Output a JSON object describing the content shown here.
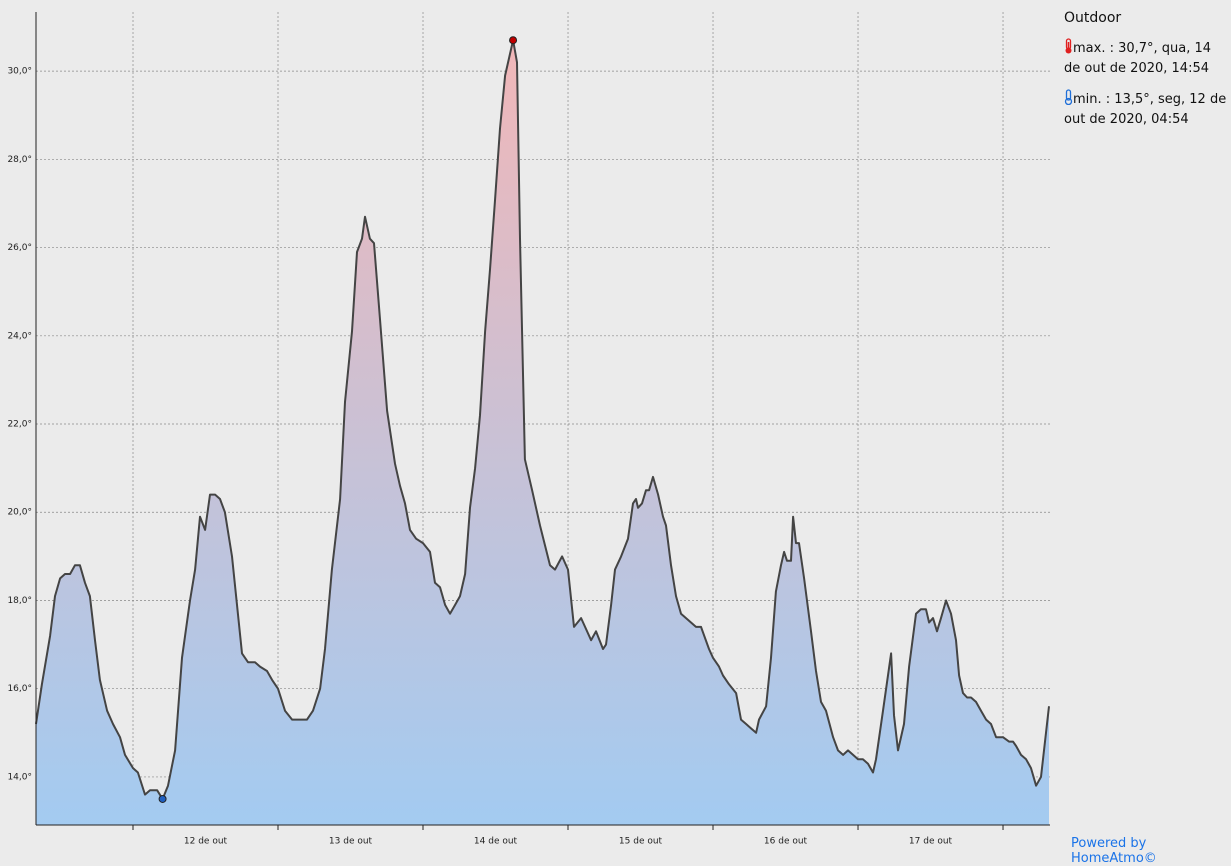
{
  "chart_data": {
    "type": "area",
    "title": "Outdoor",
    "annotations": [
      "max. : 30,7°, qua, 14 de out de 2020, 14:54",
      "min. : 13,5°, seg, 12 de out de 2020, 04:54"
    ],
    "x": [
      11.331,
      11.372,
      11.428,
      11.462,
      11.497,
      11.531,
      11.566,
      11.6,
      11.634,
      11.669,
      11.703,
      11.738,
      11.772,
      11.821,
      11.862,
      11.91,
      11.945,
      12,
      12.034,
      12.083,
      12.117,
      12.166,
      12.204,
      12.241,
      12.29,
      12.338,
      12.393,
      12.428,
      12.462,
      12.497,
      12.531,
      12.566,
      12.6,
      12.634,
      12.683,
      12.717,
      12.752,
      12.793,
      12.841,
      12.876,
      12.924,
      12.959,
      13,
      13.048,
      13.097,
      13.152,
      13.2,
      13.241,
      13.29,
      13.324,
      13.372,
      13.428,
      13.462,
      13.51,
      13.545,
      13.579,
      13.6,
      13.634,
      13.662,
      13.703,
      13.752,
      13.807,
      13.841,
      13.876,
      13.91,
      13.952,
      14,
      14.048,
      14.083,
      14.117,
      14.152,
      14.186,
      14.221,
      14.255,
      14.29,
      14.324,
      14.359,
      14.393,
      14.428,
      14.462,
      14.497,
      14.531,
      14.566,
      14.621,
      14.648,
      14.669,
      14.703,
      14.752,
      14.807,
      14.876,
      14.91,
      14.959,
      15,
      15.041,
      15.09,
      15.159,
      15.193,
      15.241,
      15.262,
      15.297,
      15.324,
      15.366,
      15.414,
      15.448,
      15.469,
      15.483,
      15.51,
      15.538,
      15.559,
      15.586,
      15.621,
      15.655,
      15.676,
      15.71,
      15.745,
      15.779,
      15.814,
      15.848,
      15.883,
      15.917,
      15.972,
      16,
      16.041,
      16.069,
      16.11,
      16.159,
      16.193,
      16.228,
      16.262,
      16.297,
      16.317,
      16.366,
      16.4,
      16.434,
      16.469,
      16.49,
      16.51,
      16.538,
      16.552,
      16.572,
      16.593,
      16.628,
      16.676,
      16.71,
      16.745,
      16.779,
      16.828,
      16.862,
      16.897,
      16.931,
      16.966,
      17,
      17.034,
      17.069,
      17.103,
      17.124,
      17.172,
      17.228,
      17.248,
      17.276,
      17.317,
      17.352,
      17.4,
      17.434,
      17.469,
      17.49,
      17.517,
      17.545,
      17.572,
      17.607,
      17.641,
      17.676,
      17.697,
      17.724,
      17.752,
      17.779,
      17.814,
      17.848,
      17.883,
      17.917,
      17.952,
      18,
      18.041,
      18.069,
      18.09,
      18.124,
      18.159,
      18.193,
      18.228,
      18.262,
      18.317
    ],
    "values": [
      15.2,
      16.1,
      17.2,
      18.1,
      18.5,
      18.6,
      18.6,
      18.8,
      18.8,
      18.4,
      18.1,
      17.1,
      16.2,
      15.5,
      15.2,
      14.9,
      14.5,
      14.2,
      14.1,
      13.6,
      13.7,
      13.7,
      13.5,
      13.8,
      14.6,
      16.7,
      18.0,
      18.7,
      19.9,
      19.6,
      20.4,
      20.4,
      20.3,
      20.0,
      19.0,
      17.9,
      16.8,
      16.6,
      16.6,
      16.5,
      16.4,
      16.2,
      16.0,
      15.5,
      15.3,
      15.3,
      15.3,
      15.5,
      16.0,
      16.9,
      18.7,
      20.3,
      22.5,
      24.1,
      25.9,
      26.2,
      26.7,
      26.2,
      26.1,
      24.4,
      22.3,
      21.1,
      20.6,
      20.2,
      19.6,
      19.4,
      19.3,
      19.1,
      18.4,
      18.3,
      17.9,
      17.7,
      17.9,
      18.1,
      18.6,
      20.1,
      21.0,
      22.2,
      24.1,
      25.5,
      27.1,
      28.7,
      29.9,
      30.7,
      30.2,
      26.2,
      21.2,
      20.5,
      19.7,
      18.8,
      18.7,
      19.0,
      18.7,
      17.4,
      17.6,
      17.1,
      17.3,
      16.9,
      17.0,
      17.9,
      18.7,
      19.0,
      19.4,
      20.2,
      20.3,
      20.1,
      20.2,
      20.5,
      20.5,
      20.8,
      20.4,
      19.9,
      19.7,
      18.8,
      18.1,
      17.7,
      17.6,
      17.5,
      17.4,
      17.4,
      16.9,
      16.7,
      16.5,
      16.3,
      16.1,
      15.9,
      15.3,
      15.2,
      15.1,
      15.0,
      15.3,
      15.6,
      16.7,
      18.2,
      18.8,
      19.1,
      18.9,
      18.9,
      19.9,
      19.3,
      19.3,
      18.5,
      17.3,
      16.4,
      15.7,
      15.5,
      14.9,
      14.6,
      14.5,
      14.6,
      14.5,
      14.4,
      14.4,
      14.3,
      14.1,
      14.4,
      15.5,
      16.8,
      15.4,
      14.6,
      15.2,
      16.5,
      17.7,
      17.8,
      17.8,
      17.5,
      17.6,
      17.3,
      17.6,
      18.0,
      17.7,
      17.1,
      16.3,
      15.9,
      15.8,
      15.8,
      15.7,
      15.5,
      15.3,
      15.2,
      14.9,
      14.9,
      14.8,
      14.8,
      14.7,
      14.5,
      14.4,
      14.2,
      13.8,
      14.0,
      15.6
    ],
    "line_color": "#444444",
    "gradient": [
      "#f4b6b6",
      "#a3cbf1"
    ],
    "max_marker_color": "#c00000",
    "min_marker_color": "#1f5fbf",
    "xlim": [
      11.331,
      18.324
    ],
    "ylim": [
      12.91,
      31.34
    ],
    "xticks": [
      {
        "value": 12.5,
        "label": "12 de out"
      },
      {
        "value": 13.5,
        "label": "13 de out"
      },
      {
        "value": 14.5,
        "label": "14 de out"
      },
      {
        "value": 15.5,
        "label": "15 de out"
      },
      {
        "value": 16.5,
        "label": "16 de out"
      },
      {
        "value": 17.5,
        "label": "17 de out"
      }
    ],
    "xgrid": [
      12,
      13,
      14,
      15,
      16,
      17,
      18
    ],
    "yticks": [
      {
        "value": 14,
        "label": "14,0°"
      },
      {
        "value": 16,
        "label": "16,0°"
      },
      {
        "value": 18,
        "label": "18,0°"
      },
      {
        "value": 20,
        "label": "20,0°"
      },
      {
        "value": 22,
        "label": "22,0°"
      },
      {
        "value": 24,
        "label": "24,0°"
      },
      {
        "value": 26,
        "label": "26,0°"
      },
      {
        "value": 28,
        "label": "28,0°"
      },
      {
        "value": 30,
        "label": "30,0°"
      }
    ],
    "grid": true
  },
  "footer": "Powered by HomeAtmo©"
}
